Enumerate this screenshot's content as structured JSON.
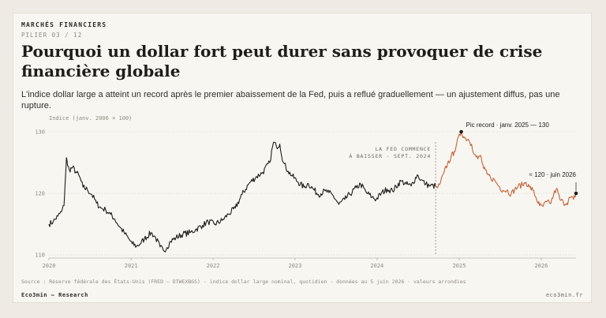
{
  "header": {
    "kicker": "MARCHÉS FINANCIERS",
    "pillar": "PILIER 03 / 12",
    "title": "Pourquoi un dollar fort peut durer sans provoquer de crise financière globale",
    "subtitle": "L'indice dollar large a atteint un record après le premier abaissement de la Fed, puis a reflué graduellement — un ajustement diffus, pas une rupture."
  },
  "chart_data": {
    "type": "line",
    "ylabel": "Indice (janv. 2006 = 100)",
    "ylim": [
      110,
      130
    ],
    "yticks": [
      110,
      120,
      130
    ],
    "xlim": [
      "2020-01-01",
      "2026-06-05"
    ],
    "xticks": [
      "2020",
      "2021",
      "2022",
      "2023",
      "2024",
      "2025",
      "2026"
    ],
    "grid": true,
    "series": [
      {
        "segment": "before",
        "color": "#1c1c1a",
        "points": [
          [
            "2020-01-01",
            115.0
          ],
          [
            "2020-01-20",
            115.4
          ],
          [
            "2020-02-10",
            116.3
          ],
          [
            "2020-02-26",
            117.0
          ],
          [
            "2020-03-08",
            118.0
          ],
          [
            "2020-03-13",
            121.5
          ],
          [
            "2020-03-19",
            125.8
          ],
          [
            "2020-03-24",
            124.5
          ],
          [
            "2020-04-01",
            123.8
          ],
          [
            "2020-04-15",
            124.2
          ],
          [
            "2020-04-30",
            123.5
          ],
          [
            "2020-05-15",
            122.8
          ],
          [
            "2020-06-01",
            121.0
          ],
          [
            "2020-06-20",
            120.6
          ],
          [
            "2020-07-10",
            119.8
          ],
          [
            "2020-07-31",
            118.4
          ],
          [
            "2020-08-20",
            117.6
          ],
          [
            "2020-09-10",
            117.3
          ],
          [
            "2020-10-01",
            116.6
          ],
          [
            "2020-10-20",
            115.8
          ],
          [
            "2020-11-10",
            114.6
          ],
          [
            "2020-12-01",
            113.6
          ],
          [
            "2020-12-20",
            112.7
          ],
          [
            "2021-01-06",
            111.8
          ],
          [
            "2021-01-25",
            111.4
          ],
          [
            "2021-02-10",
            111.8
          ],
          [
            "2021-03-01",
            112.6
          ],
          [
            "2021-03-31",
            113.6
          ],
          [
            "2021-04-20",
            112.8
          ],
          [
            "2021-05-10",
            111.3
          ],
          [
            "2021-05-25",
            110.7
          ],
          [
            "2021-06-10",
            111.2
          ],
          [
            "2021-06-25",
            112.2
          ],
          [
            "2021-07-20",
            112.8
          ],
          [
            "2021-08-20",
            113.4
          ],
          [
            "2021-09-20",
            113.6
          ],
          [
            "2021-10-15",
            114.1
          ],
          [
            "2021-11-15",
            114.8
          ],
          [
            "2021-12-10",
            115.4
          ],
          [
            "2022-01-10",
            115.0
          ],
          [
            "2022-02-10",
            115.6
          ],
          [
            "2022-03-10",
            116.6
          ],
          [
            "2022-04-10",
            117.6
          ],
          [
            "2022-05-10",
            119.8
          ],
          [
            "2022-06-10",
            121.6
          ],
          [
            "2022-07-10",
            122.6
          ],
          [
            "2022-08-10",
            123.4
          ],
          [
            "2022-09-10",
            125.0
          ],
          [
            "2022-09-27",
            128.3
          ],
          [
            "2022-10-10",
            127.6
          ],
          [
            "2022-10-25",
            128.0
          ],
          [
            "2022-11-10",
            125.0
          ],
          [
            "2022-12-01",
            123.6
          ],
          [
            "2022-12-20",
            122.8
          ],
          [
            "2023-01-15",
            121.8
          ],
          [
            "2023-02-10",
            121.0
          ],
          [
            "2023-03-01",
            121.6
          ],
          [
            "2023-03-20",
            120.8
          ],
          [
            "2023-04-15",
            119.8
          ],
          [
            "2023-05-15",
            120.4
          ],
          [
            "2023-06-01",
            120.1
          ],
          [
            "2023-06-20",
            119.6
          ],
          [
            "2023-07-15",
            118.2
          ],
          [
            "2023-08-10",
            119.0
          ],
          [
            "2023-09-01",
            119.8
          ],
          [
            "2023-09-30",
            120.9
          ],
          [
            "2023-10-20",
            121.5
          ],
          [
            "2023-11-15",
            120.1
          ],
          [
            "2023-12-10",
            119.4
          ],
          [
            "2023-12-28",
            119.0
          ],
          [
            "2024-01-20",
            120.0
          ],
          [
            "2024-02-15",
            120.7
          ],
          [
            "2024-03-10",
            120.4
          ],
          [
            "2024-04-16",
            122.0
          ],
          [
            "2024-05-10",
            121.5
          ],
          [
            "2024-06-01",
            121.2
          ],
          [
            "2024-06-28",
            123.0
          ],
          [
            "2024-07-15",
            122.2
          ],
          [
            "2024-08-05",
            121.5
          ],
          [
            "2024-08-25",
            121.2
          ],
          [
            "2024-09-18",
            121.2
          ]
        ]
      },
      {
        "segment": "after",
        "color": "#c2633b",
        "points": [
          [
            "2024-09-18",
            121.2
          ],
          [
            "2024-09-27",
            120.9
          ],
          [
            "2024-10-10",
            121.8
          ],
          [
            "2024-10-25",
            123.3
          ],
          [
            "2024-11-10",
            124.8
          ],
          [
            "2024-11-25",
            125.8
          ],
          [
            "2024-12-10",
            126.8
          ],
          [
            "2024-12-20",
            128.0
          ],
          [
            "2025-01-10",
            130.0
          ],
          [
            "2025-01-25",
            129.0
          ],
          [
            "2025-02-10",
            128.8
          ],
          [
            "2025-02-25",
            128.0
          ],
          [
            "2025-03-10",
            126.3
          ],
          [
            "2025-03-25",
            125.6
          ],
          [
            "2025-04-05",
            126.2
          ],
          [
            "2025-04-20",
            124.0
          ],
          [
            "2025-05-05",
            123.1
          ],
          [
            "2025-05-20",
            122.6
          ],
          [
            "2025-06-10",
            122.0
          ],
          [
            "2025-06-30",
            121.0
          ],
          [
            "2025-07-15",
            120.5
          ],
          [
            "2025-08-01",
            120.5
          ],
          [
            "2025-08-20",
            119.9
          ],
          [
            "2025-09-05",
            120.6
          ],
          [
            "2025-09-20",
            121.1
          ],
          [
            "2025-10-10",
            121.4
          ],
          [
            "2025-10-25",
            121.8
          ],
          [
            "2025-11-10",
            121.0
          ],
          [
            "2025-11-25",
            120.5
          ],
          [
            "2025-12-10",
            119.2
          ],
          [
            "2025-12-25",
            118.0
          ],
          [
            "2026-01-10",
            117.9
          ],
          [
            "2026-01-25",
            118.6
          ],
          [
            "2026-02-10",
            118.3
          ],
          [
            "2026-02-25",
            119.7
          ],
          [
            "2026-03-10",
            120.8
          ],
          [
            "2026-03-25",
            119.0
          ],
          [
            "2026-04-10",
            118.5
          ],
          [
            "2026-04-25",
            118.4
          ],
          [
            "2026-05-10",
            119.3
          ],
          [
            "2026-05-25",
            119.0
          ],
          [
            "2026-06-05",
            120.0
          ]
        ]
      }
    ],
    "event": {
      "date": "2024-09-18",
      "line1": "LA FED COMMENCE",
      "line2": "À BAISSER · SEPT. 2024"
    },
    "annotations": [
      {
        "date": "2025-01-10",
        "value": 130.0,
        "text": "Pic record · janv. 2025 — 130"
      },
      {
        "date": "2026-06-05",
        "value": 120.0,
        "text": "≈ 120 · juin 2026"
      }
    ],
    "colors": {
      "before": "#1c1c1a",
      "after": "#c2633b",
      "grid": "#cfcac0",
      "event": "#8e8a82"
    }
  },
  "footer": {
    "source": "Source : Réserve fédérale des États-Unis (FRED — DTWEXBGS) · indice dollar large nominal, quotidien · données au 5 juin 2026 · valeurs arrondies",
    "brand": "Eco3min — Research",
    "site": "eco3min.fr"
  }
}
